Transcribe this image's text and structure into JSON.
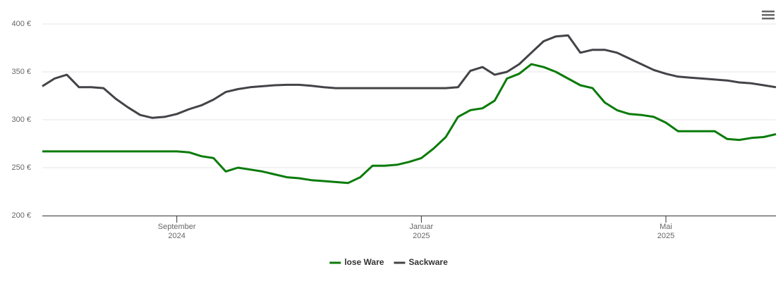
{
  "chart_data": {
    "type": "line",
    "categories": [
      null,
      null,
      null,
      null,
      null,
      null,
      null,
      null,
      null,
      null,
      null,
      "September\n2024",
      null,
      null,
      null,
      null,
      null,
      null,
      null,
      null,
      null,
      null,
      null,
      null,
      null,
      null,
      null,
      null,
      null,
      null,
      null,
      "Januar\n2025",
      null,
      null,
      null,
      null,
      null,
      null,
      null,
      null,
      null,
      null,
      null,
      null,
      null,
      null,
      null,
      null,
      null,
      null,
      null,
      "Mai\n2025",
      null,
      null,
      null,
      null,
      null,
      null,
      null,
      null,
      null
    ],
    "series": [
      {
        "name": "lose Ware",
        "color": "#0a7b0a",
        "values": [
          267,
          267,
          267,
          267,
          267,
          267,
          267,
          267,
          267,
          267,
          267,
          267,
          266,
          262,
          260,
          246,
          250,
          248,
          246,
          243,
          240,
          239,
          237,
          236,
          235,
          234,
          240,
          252,
          252,
          253,
          256,
          260,
          270,
          282,
          303,
          310,
          312,
          320,
          343,
          348,
          358,
          355,
          350,
          343,
          336,
          333,
          318,
          310,
          306,
          305,
          303,
          297,
          288,
          288,
          288,
          288,
          280,
          279,
          281,
          282,
          285
        ]
      },
      {
        "name": "Sackware",
        "color": "#434348",
        "values": [
          335,
          343,
          347,
          334,
          334,
          333,
          322,
          313,
          305,
          302,
          303,
          306,
          311,
          315,
          321,
          329,
          332,
          334,
          335,
          336,
          336.5,
          336.5,
          335.5,
          334,
          333,
          333,
          333,
          333,
          333,
          333,
          333,
          333,
          333,
          333,
          334,
          351,
          355,
          347,
          350,
          358,
          370,
          382,
          387,
          388,
          370,
          373,
          373,
          370,
          364,
          358,
          352,
          348,
          345,
          344,
          343,
          342,
          341,
          339,
          338,
          336,
          334
        ]
      }
    ],
    "ylim": [
      200,
      400
    ],
    "yticks": [
      {
        "value": 200,
        "label": "200 €"
      },
      {
        "value": 250,
        "label": "250 €"
      },
      {
        "value": 300,
        "label": "300 €"
      },
      {
        "value": 350,
        "label": "350 €"
      },
      {
        "value": 400,
        "label": "400 €"
      }
    ],
    "grid": true,
    "legend": "bottom"
  }
}
